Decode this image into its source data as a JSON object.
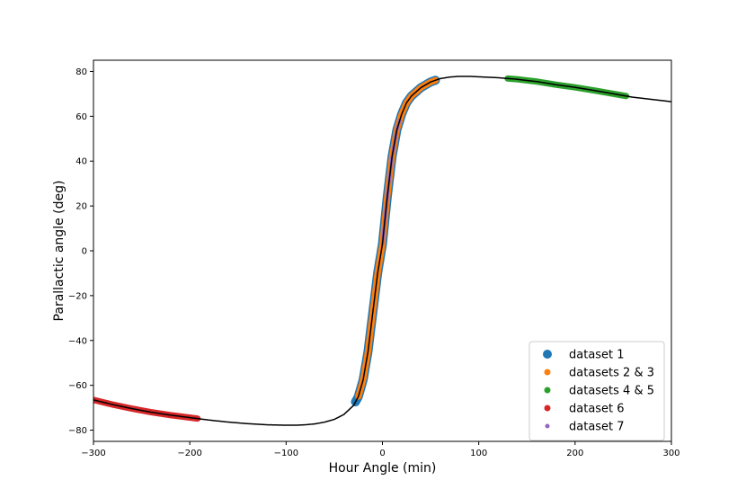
{
  "chart_data": {
    "type": "line",
    "xlabel": "Hour Angle (min)",
    "ylabel": "Parallactic angle (deg)",
    "xlim": [
      -300,
      300
    ],
    "ylim": [
      -85,
      85
    ],
    "xticks": [
      -300,
      -200,
      -100,
      0,
      100,
      200,
      300
    ],
    "xtick_labels": [
      "−300",
      "−200",
      "−100",
      "0",
      "100",
      "200",
      "300"
    ],
    "yticks": [
      -80,
      -60,
      -40,
      -20,
      0,
      20,
      40,
      60,
      80
    ],
    "ytick_labels": [
      "−80",
      "−60",
      "−40",
      "−20",
      "0",
      "20",
      "40",
      "60",
      "80"
    ],
    "grid": false,
    "legend_position": "bottom-right",
    "curve": {
      "color": "#000000",
      "x": [
        -300,
        -280,
        -260,
        -240,
        -220,
        -200,
        -180,
        -160,
        -140,
        -120,
        -100,
        -90,
        -80,
        -70,
        -60,
        -50,
        -40,
        -30,
        -25,
        -20,
        -15,
        -10,
        -5,
        0,
        5,
        10,
        15,
        20,
        25,
        30,
        40,
        50,
        60,
        70,
        80,
        90,
        100,
        120,
        140,
        160,
        180,
        200,
        220,
        240,
        260,
        280,
        300
      ],
      "y": [
        -66.5,
        -68.6,
        -70.4,
        -72.0,
        -73.3,
        -74.4,
        -75.5,
        -76.4,
        -77.1,
        -77.6,
        -77.8,
        -77.8,
        -77.6,
        -77.2,
        -76.4,
        -75.2,
        -73.0,
        -69.0,
        -65.0,
        -57.5,
        -45.0,
        -27.5,
        -10.0,
        3.0,
        24.0,
        42.0,
        54.0,
        61.0,
        66.0,
        69.0,
        72.8,
        75.3,
        76.8,
        77.5,
        77.8,
        77.8,
        77.6,
        77.2,
        76.5,
        75.5,
        74.1,
        72.9,
        71.5,
        70.0,
        68.5,
        67.5,
        66.5
      ]
    },
    "series": [
      {
        "name": "dataset 1",
        "color": "#1f77b4",
        "marker_size": "large",
        "x_range": [
          -28,
          55
        ]
      },
      {
        "name": "datasets 2 & 3",
        "color": "#ff7f0e",
        "marker_size": "medium",
        "x_range": [
          -25,
          55
        ]
      },
      {
        "name": "datasets 4 & 5",
        "color": "#2ca02c",
        "marker_size": "medium",
        "x_range": [
          130,
          253
        ]
      },
      {
        "name": "dataset 6",
        "color": "#d62728",
        "marker_size": "medium",
        "x_range": [
          -300,
          -192
        ]
      },
      {
        "name": "dataset 7",
        "color": "#9467bd",
        "marker_size": "small",
        "x_range": [
          0,
          18
        ]
      }
    ]
  }
}
